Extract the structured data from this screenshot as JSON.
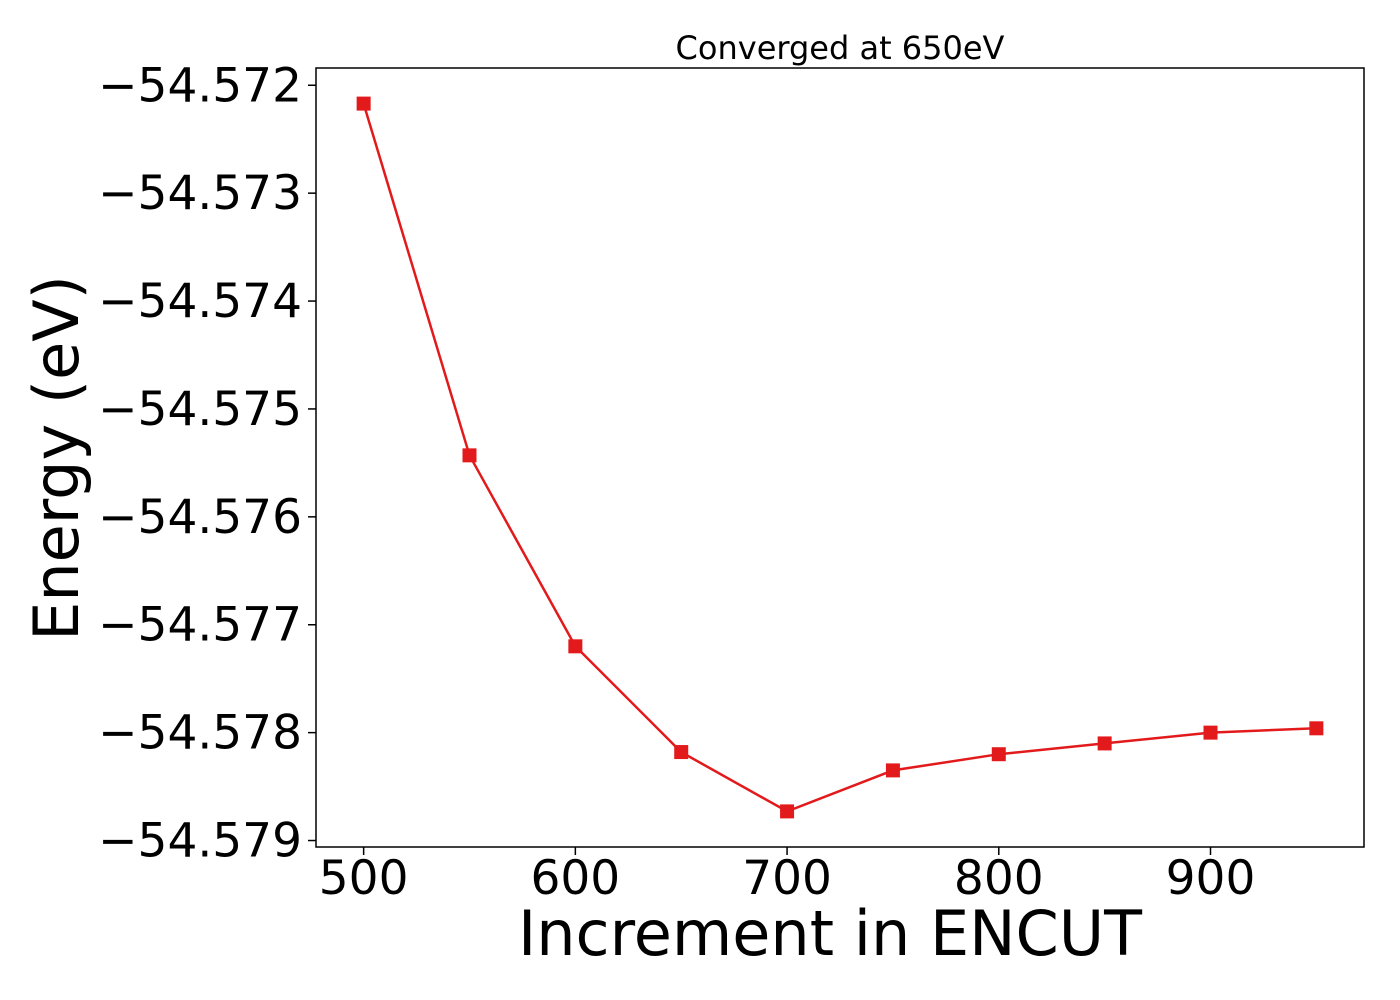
{
  "chart_data": {
    "type": "line",
    "title": "Converged at 650eV",
    "xlabel": "Increment in ENCUT",
    "ylabel": "Energy (eV)",
    "x": [
      500,
      550,
      600,
      650,
      700,
      750,
      800,
      850,
      900,
      950
    ],
    "series": [
      {
        "values": [
          -54.57217,
          -54.57543,
          -54.5772,
          -54.57818,
          -54.57873,
          -54.57835,
          -54.5782,
          -54.5781,
          -54.578,
          -54.57796
        ],
        "color": "#e31a1c",
        "marker": "square"
      }
    ],
    "xticks": [
      500,
      600,
      700,
      800,
      900
    ],
    "xtick_labels": [
      "500",
      "600",
      "700",
      "800",
      "900"
    ],
    "yticks": [
      -54.572,
      -54.573,
      -54.574,
      -54.575,
      -54.576,
      -54.577,
      -54.578,
      -54.579
    ],
    "ytick_labels": [
      "−54.572",
      "−54.573",
      "−54.574",
      "−54.575",
      "−54.576",
      "−54.577",
      "−54.578",
      "−54.579"
    ],
    "xlim": [
      477.5,
      972.5
    ],
    "ylim": [
      -54.57906,
      -54.57184
    ],
    "grid": false,
    "legend": "none"
  }
}
